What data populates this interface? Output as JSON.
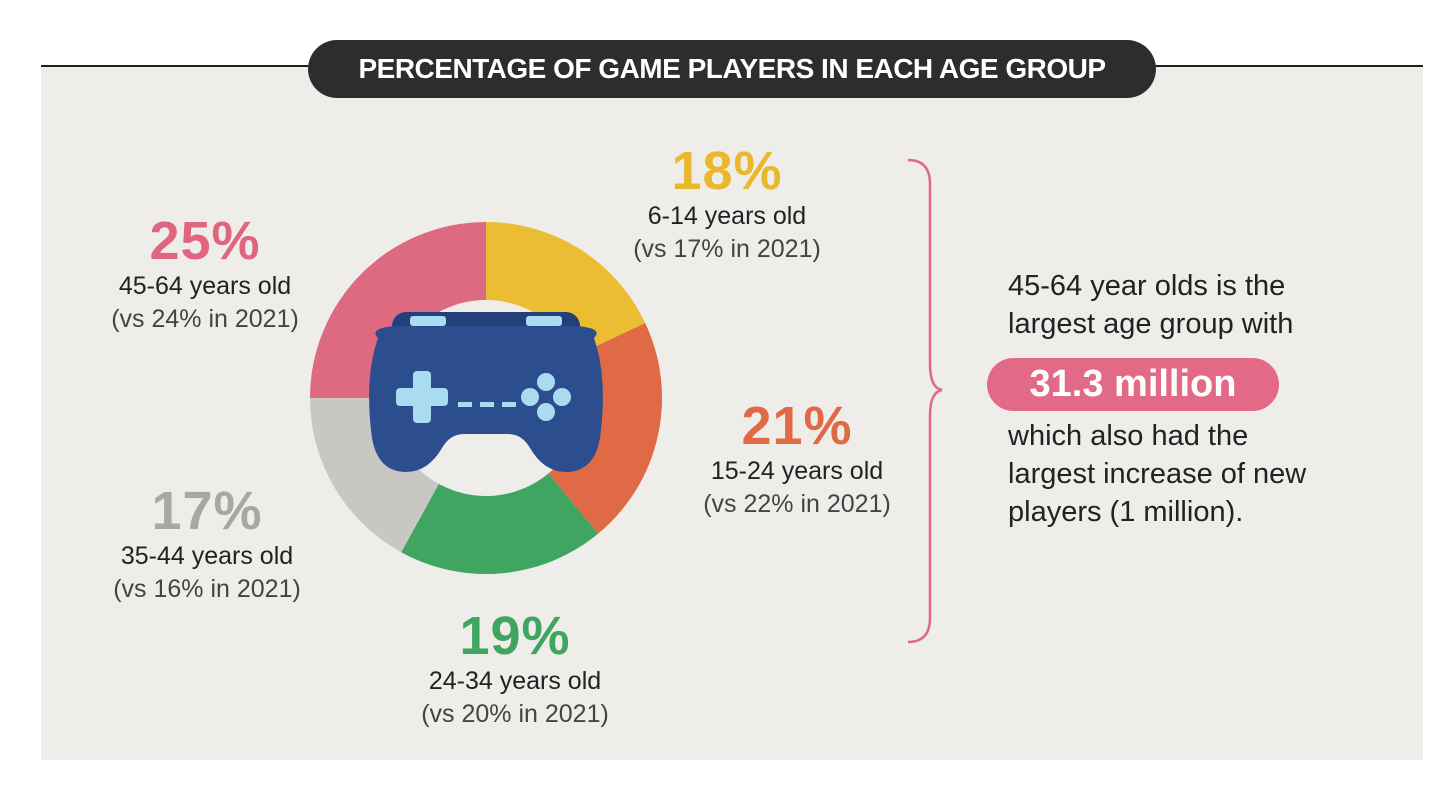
{
  "title": "PERCENTAGE OF GAME PLAYERS IN EACH AGE GROUP",
  "chart_data": {
    "type": "pie",
    "style": "donut",
    "slices": [
      {
        "age": "6-14 years old",
        "pct_label": "18%",
        "value": 18,
        "comparison": "(vs 17% in 2021)",
        "color": "#ebbd32"
      },
      {
        "age": "15-24 years old",
        "pct_label": "21%",
        "value": 21,
        "comparison": "(vs 22% in 2021)",
        "color": "#e06a45"
      },
      {
        "age": "24-34 years old",
        "pct_label": "19%",
        "value": 19,
        "comparison": "(vs 20% in 2021)",
        "color": "#3fa560"
      },
      {
        "age": "35-44 years old",
        "pct_label": "17%",
        "value": 17,
        "comparison": "(vs 16% in 2021)",
        "color": "#c9c7c4"
      },
      {
        "age": "45-64 years old",
        "pct_label": "25%",
        "value": 25,
        "comparison": "(vs 24% in 2021)",
        "color": "#dd6a80"
      }
    ],
    "pct_label_colors": [
      "#e9b82c",
      "#e06a45",
      "#3fa560",
      "#a9a7a4",
      "#e0657f"
    ],
    "center_icon": "gamepad-icon"
  },
  "note": {
    "line1": "45-64 year olds is the",
    "line2": "largest age group with",
    "highlight": "31.3 million",
    "line3": "which also had the",
    "line4": "largest increase of new",
    "line5": "players (1 million)."
  },
  "colors": {
    "bracket": "#e06a86",
    "gamepad": "#2c4d8e",
    "gamepad_buttons": "#a9dcf0"
  }
}
